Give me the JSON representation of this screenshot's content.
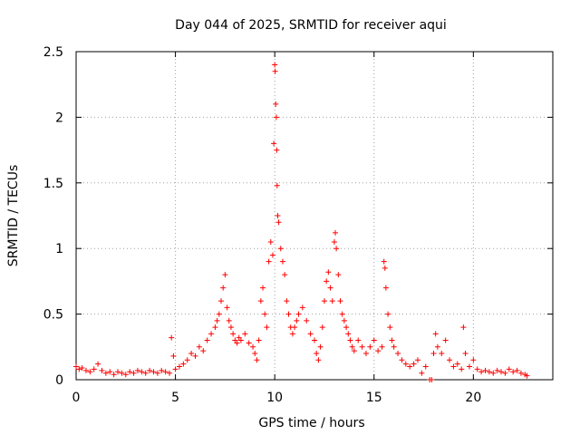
{
  "chart_data": {
    "type": "scatter",
    "title": "Day 044 of 2025, SRMTID for receiver aqui",
    "xlabel": "GPS time / hours",
    "ylabel": "SRMTID / TECUs",
    "xlim": [
      0,
      24
    ],
    "ylim": [
      0,
      2.5
    ],
    "x_ticks": [
      0,
      5,
      10,
      15,
      20
    ],
    "x_tick_labels": [
      "0",
      "5",
      "10",
      "15",
      "20"
    ],
    "y_ticks": [
      0,
      0.5,
      1,
      1.5,
      2,
      2.5
    ],
    "y_tick_labels": [
      "0",
      "0.5",
      "1",
      "1.5",
      "2",
      "2.5"
    ],
    "grid": true,
    "legend": "none",
    "marker": "+",
    "series": [
      {
        "name": "SRMTID",
        "color": "#ff0000",
        "x": [
          0.0,
          0.15,
          0.3,
          0.5,
          0.7,
          0.9,
          1.1,
          1.3,
          1.5,
          1.7,
          1.9,
          2.1,
          2.3,
          2.5,
          2.7,
          2.9,
          3.1,
          3.3,
          3.5,
          3.7,
          3.9,
          4.1,
          4.3,
          4.5,
          4.7,
          4.8,
          4.9,
          5.0,
          5.2,
          5.4,
          5.6,
          5.8,
          6.0,
          6.2,
          6.4,
          6.6,
          6.8,
          7.0,
          7.1,
          7.2,
          7.3,
          7.4,
          7.5,
          7.6,
          7.7,
          7.8,
          7.9,
          8.0,
          8.1,
          8.2,
          8.3,
          8.5,
          8.7,
          8.9,
          9.0,
          9.1,
          9.2,
          9.3,
          9.4,
          9.5,
          9.6,
          9.7,
          9.8,
          9.9,
          9.95,
          10.0,
          10.02,
          10.05,
          10.08,
          10.1,
          10.12,
          10.15,
          10.2,
          10.3,
          10.4,
          10.5,
          10.6,
          10.7,
          10.8,
          10.9,
          11.0,
          11.1,
          11.2,
          11.4,
          11.6,
          11.8,
          12.0,
          12.1,
          12.2,
          12.3,
          12.4,
          12.5,
          12.6,
          12.7,
          12.8,
          12.9,
          13.0,
          13.05,
          13.1,
          13.2,
          13.3,
          13.4,
          13.5,
          13.6,
          13.7,
          13.8,
          13.9,
          14.0,
          14.2,
          14.4,
          14.6,
          14.8,
          15.0,
          15.2,
          15.4,
          15.5,
          15.55,
          15.6,
          15.7,
          15.8,
          15.9,
          16.0,
          16.2,
          16.4,
          16.6,
          16.8,
          17.0,
          17.2,
          17.4,
          17.6,
          17.8,
          17.9,
          18.0,
          18.1,
          18.2,
          18.4,
          18.6,
          18.8,
          19.0,
          19.2,
          19.4,
          19.5,
          19.6,
          19.8,
          20.0,
          20.2,
          20.4,
          20.6,
          20.8,
          21.0,
          21.2,
          21.4,
          21.6,
          21.8,
          22.0,
          22.2,
          22.4,
          22.6,
          22.7
        ],
        "y": [
          0.1,
          0.08,
          0.09,
          0.07,
          0.06,
          0.08,
          0.12,
          0.07,
          0.05,
          0.06,
          0.04,
          0.06,
          0.05,
          0.04,
          0.06,
          0.05,
          0.07,
          0.06,
          0.05,
          0.07,
          0.06,
          0.05,
          0.07,
          0.06,
          0.05,
          0.32,
          0.18,
          0.08,
          0.1,
          0.12,
          0.15,
          0.2,
          0.18,
          0.25,
          0.22,
          0.3,
          0.35,
          0.4,
          0.45,
          0.5,
          0.6,
          0.7,
          0.8,
          0.55,
          0.45,
          0.4,
          0.35,
          0.3,
          0.28,
          0.32,
          0.3,
          0.35,
          0.28,
          0.25,
          0.2,
          0.15,
          0.3,
          0.6,
          0.7,
          0.5,
          0.4,
          0.9,
          1.05,
          0.95,
          1.8,
          2.4,
          2.35,
          2.1,
          2.0,
          1.75,
          1.48,
          1.25,
          1.2,
          1.0,
          0.9,
          0.8,
          0.6,
          0.5,
          0.4,
          0.35,
          0.4,
          0.45,
          0.5,
          0.55,
          0.45,
          0.35,
          0.3,
          0.2,
          0.15,
          0.25,
          0.4,
          0.6,
          0.75,
          0.82,
          0.7,
          0.6,
          1.05,
          1.12,
          1.0,
          0.8,
          0.6,
          0.5,
          0.45,
          0.4,
          0.35,
          0.3,
          0.25,
          0.22,
          0.3,
          0.25,
          0.2,
          0.25,
          0.3,
          0.22,
          0.25,
          0.9,
          0.85,
          0.7,
          0.5,
          0.4,
          0.3,
          0.25,
          0.2,
          0.15,
          0.12,
          0.1,
          0.12,
          0.15,
          0.05,
          0.1,
          0.0,
          0.0,
          0.2,
          0.35,
          0.25,
          0.2,
          0.3,
          0.15,
          0.1,
          0.12,
          0.08,
          0.4,
          0.2,
          0.1,
          0.15,
          0.08,
          0.06,
          0.07,
          0.06,
          0.05,
          0.07,
          0.06,
          0.05,
          0.08,
          0.06,
          0.07,
          0.05,
          0.04,
          0.03
        ]
      }
    ]
  }
}
